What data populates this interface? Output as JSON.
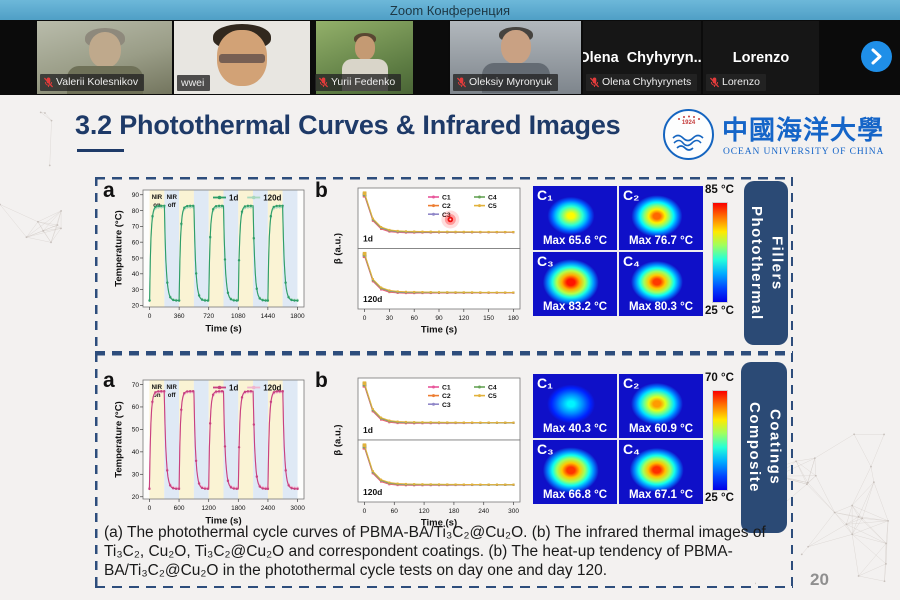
{
  "titlebar": {
    "title": "Zoom Конференция"
  },
  "video_strip": {
    "participants": [
      {
        "name": "Valerii Kolesnikov",
        "muted": true,
        "video": true
      },
      {
        "name": "wwei",
        "muted": false,
        "video": true,
        "active": true
      },
      {
        "name": "Yurii Fedenko",
        "muted": true,
        "video": true
      },
      {
        "name": "Oleksiy Myronyuk",
        "muted": true,
        "video": true
      },
      {
        "name": "Olena Chyhyrynets",
        "muted": true,
        "video": false,
        "display": "Olena  Chyhyryn..."
      },
      {
        "name": "Lorenzo",
        "muted": true,
        "video": false,
        "display": "Lorenzo"
      }
    ]
  },
  "slide": {
    "title": "3.2 Photothermal Curves & Infrared Images",
    "logo": {
      "cn": "中國海洋大學",
      "en": "OCEAN UNIVERSITY OF CHINA",
      "year": "1924"
    },
    "sections": [
      {
        "tab_label": "Photothermal Fillers"
      },
      {
        "tab_label": "Composite Coatings"
      }
    ],
    "caption": "(a) The photothermal cycle curves of PBMA-BA/Ti₃C₂@Cu₂O. (b) The infrared thermal images of Ti₃C₂, Cu₂O, Ti₃C₂@Cu₂O and correspondent coatings. (b) The heat-up tendency of PBMA-BA/Ti₃C₂@Cu₂O in the photothermal cycle tests on day one and day 120.",
    "page_number": "20"
  },
  "chart_data": [
    {
      "id": "fillers_cycle_curves",
      "type": "line",
      "panel_label": "a",
      "xlabel": "Time (s)",
      "ylabel": "Temperature (°C)",
      "xticks": [
        0,
        360,
        720,
        1080,
        1440,
        1800
      ],
      "yticks": [
        20,
        30,
        40,
        50,
        60,
        70,
        80,
        90
      ],
      "xlim": [
        -80,
        1880
      ],
      "ylim": [
        19,
        93
      ],
      "cycles": 5,
      "period": 360,
      "nir_on": [
        "NIR",
        "on"
      ],
      "nir_off": [
        "NIR",
        "off"
      ],
      "band_colors": {
        "on": "#faf3d4",
        "off": "#dfe9f5"
      },
      "series": [
        {
          "name": "1d",
          "color": "#2f9e68",
          "base": 23,
          "peak": 83
        },
        {
          "name": "120d",
          "color": "#a8d8bd",
          "base": 23.5,
          "peak": 82
        }
      ]
    },
    {
      "id": "fillers_heatup_tendency",
      "type": "line",
      "panel_label": "b",
      "xlabel": "Time (s)",
      "ylabel": "β (a.u.)",
      "xticks": [
        0,
        30,
        60,
        90,
        120,
        150,
        180
      ],
      "xlim": [
        -8,
        188
      ],
      "subplots": [
        {
          "label": "1d"
        },
        {
          "label": "120d"
        }
      ],
      "series": [
        {
          "name": "C1",
          "color": "#e8559a"
        },
        {
          "name": "C2",
          "color": "#ed7d31"
        },
        {
          "name": "C3",
          "color": "#9087c8"
        },
        {
          "name": "C4",
          "color": "#67a457"
        },
        {
          "name": "C5",
          "color": "#e2b23c"
        }
      ],
      "decay": {
        "start": 0.97,
        "end": 0.21,
        "tau_frac": 0.05
      },
      "laser_pointer": true
    },
    {
      "id": "fillers_ir_images",
      "type": "heatmap",
      "cells": [
        {
          "label": "C₁",
          "max_label": "Max 65.6 °C",
          "max_c": 65.6,
          "spot": 0.4
        },
        {
          "label": "C₂",
          "max_label": "Max 76.7 °C",
          "max_c": 76.7,
          "spot": 0.5
        },
        {
          "label": "C₃",
          "max_label": "Max 83.2 °C",
          "max_c": 83.2,
          "spot": 0.62
        },
        {
          "label": "C₄",
          "max_label": "Max 80.3 °C",
          "max_c": 80.3,
          "spot": 0.52
        }
      ],
      "scale": {
        "min_c": 25,
        "max_c": 85,
        "min_label": "25 °C",
        "max_label": "85 °C"
      }
    },
    {
      "id": "coatings_cycle_curves",
      "type": "line",
      "panel_label": "a",
      "xlabel": "Time (s)",
      "ylabel": "Temperature (°C)",
      "xticks": [
        0,
        600,
        1200,
        1800,
        2400,
        3000
      ],
      "yticks": [
        20,
        30,
        40,
        50,
        60,
        70
      ],
      "xlim": [
        -130,
        3130
      ],
      "ylim": [
        19,
        72
      ],
      "cycles": 5,
      "period": 600,
      "nir_on": [
        "NIR",
        "on"
      ],
      "nir_off": [
        "NIR",
        "off"
      ],
      "band_colors": {
        "on": "#faf3d4",
        "off": "#dfe9f5"
      },
      "series": [
        {
          "name": "1d",
          "color": "#c8417f",
          "base": 23.5,
          "peak": 67
        },
        {
          "name": "120d",
          "color": "#f0b4cf",
          "base": 24,
          "peak": 66.5
        }
      ]
    },
    {
      "id": "coatings_heatup_tendency",
      "type": "line",
      "panel_label": "b",
      "xlabel": "Time (s)",
      "ylabel": "β (a.u.)",
      "xticks": [
        0,
        60,
        120,
        180,
        240,
        300
      ],
      "xlim": [
        -13,
        313
      ],
      "subplots": [
        {
          "label": "1d"
        },
        {
          "label": "120d"
        }
      ],
      "series": [
        {
          "name": "C1",
          "color": "#e8559a"
        },
        {
          "name": "C2",
          "color": "#ed7d31"
        },
        {
          "name": "C3",
          "color": "#9087c8"
        },
        {
          "name": "C4",
          "color": "#67a457"
        },
        {
          "name": "C5",
          "color": "#e2b23c"
        }
      ],
      "decay": {
        "start": 0.97,
        "end": 0.22,
        "tau_frac": 0.05
      },
      "laser_pointer": false
    },
    {
      "id": "coatings_ir_images",
      "type": "heatmap",
      "cells": [
        {
          "label": "C₁",
          "max_label": "Max 40.3 °C",
          "max_c": 40.3,
          "spot": 0.42
        },
        {
          "label": "C₂",
          "max_label": "Max 60.9 °C",
          "max_c": 60.9,
          "spot": 0.52
        },
        {
          "label": "C₃",
          "max_label": "Max 66.8 °C",
          "max_c": 66.8,
          "spot": 0.62
        },
        {
          "label": "C₄",
          "max_label": "Max 67.1 °C",
          "max_c": 67.1,
          "spot": 0.58
        }
      ],
      "scale": {
        "min_c": 25,
        "max_c": 70,
        "min_label": "25 °C",
        "max_label": "70 °C"
      }
    }
  ]
}
